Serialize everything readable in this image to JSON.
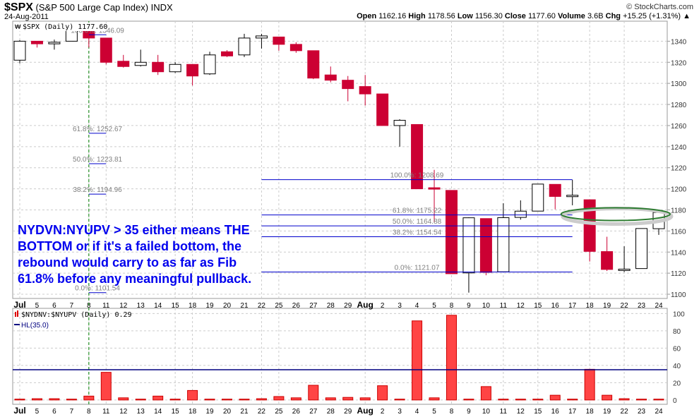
{
  "header": {
    "symbol": "$SPX",
    "name": "(S&P 500 Large Cap Index)",
    "exchange": "INDX",
    "date": "24-Aug-2011",
    "brand": "© StockCharts.com",
    "open_label": "Open",
    "open": "1162.16",
    "high_label": "High",
    "high": "1178.56",
    "low_label": "Low",
    "low": "1156.30",
    "close_label": "Close",
    "close": "1177.60",
    "volume_label": "Volume",
    "volume": "3.6B",
    "chg_label": "Chg",
    "chg": "+15.25 (+1.31%)",
    "chg_icon": "triangle-up-icon"
  },
  "annotation": [
    "NYDVN:NYUPV > 35 either means THE",
    "BOTTOM or if it's a failed bottom, the",
    "rebound would carry to as far as Fib",
    "61.8% before any meaningful pullback."
  ],
  "colors": {
    "up": "#ffffff",
    "down": "#cc0033",
    "bar": "#ff4444",
    "hline": "#000080",
    "fib": "#0000cc",
    "fibtext": "#808080",
    "vline": "#008000",
    "ellipse": "#2e7d32",
    "annotation": "#0000ee"
  },
  "chart_data": [
    {
      "type": "candlestick",
      "legend": "$SPX (Daily) 1177.60",
      "ylim": [
        1096,
        1359
      ],
      "yticks": [
        1100,
        1120,
        1140,
        1160,
        1180,
        1200,
        1220,
        1240,
        1260,
        1280,
        1300,
        1320,
        1340
      ],
      "grid": true,
      "x_labels": [
        "Jul",
        "5",
        "6",
        "7",
        "8",
        "11",
        "12",
        "13",
        "14",
        "15",
        "18",
        "19",
        "20",
        "21",
        "22",
        "25",
        "26",
        "27",
        "28",
        "29",
        "Aug",
        "2",
        "3",
        "4",
        "5",
        "8",
        "9",
        "10",
        "11",
        "12",
        "15",
        "16",
        "17",
        "18",
        "19",
        "22",
        "23",
        "24"
      ],
      "ohlc": [
        [
          1322,
          1341,
          1319,
          1340
        ],
        [
          1340,
          1340,
          1334,
          1337.5
        ],
        [
          1337.5,
          1341.5,
          1332,
          1339
        ],
        [
          1340,
          1356,
          1340,
          1353
        ],
        [
          1351,
          1356,
          1334,
          1343
        ],
        [
          1343,
          1343,
          1318,
          1320
        ],
        [
          1321,
          1327,
          1315,
          1316
        ],
        [
          1317,
          1332,
          1316,
          1320
        ],
        [
          1320,
          1327,
          1308,
          1311
        ],
        [
          1311,
          1320,
          1310,
          1318
        ],
        [
          1318,
          1318,
          1298,
          1307
        ],
        [
          1309,
          1330,
          1308,
          1327
        ],
        [
          1330,
          1331.5,
          1325,
          1326
        ],
        [
          1327,
          1347,
          1325,
          1343
        ],
        [
          1343,
          1347,
          1333,
          1345
        ],
        [
          1344,
          1344,
          1331,
          1337
        ],
        [
          1337,
          1339,
          1329,
          1331
        ],
        [
          1331,
          1331,
          1304,
          1305
        ],
        [
          1308,
          1316,
          1301,
          1303
        ],
        [
          1303,
          1307,
          1283,
          1295
        ],
        [
          1297,
          1308,
          1279,
          1290
        ],
        [
          1290,
          1290,
          1260,
          1260
        ],
        [
          1260,
          1266,
          1240,
          1265
        ],
        [
          1261,
          1261,
          1200,
          1200
        ],
        [
          1201,
          1218,
          1168,
          1200
        ],
        [
          1198.48,
          1198.48,
          1119.28,
          1119.46
        ],
        [
          1120.23,
          1172.88,
          1101.54,
          1172.53
        ],
        [
          1171.77,
          1171.77,
          1118.01,
          1120.76
        ],
        [
          1121.3,
          1186.29,
          1121.3,
          1172.64
        ],
        [
          1172.87,
          1189.04,
          1170.74,
          1178.81
        ],
        [
          1178.86,
          1204.49,
          1178.86,
          1204.49
        ],
        [
          1204.22,
          1204.22,
          1180.53,
          1192.76
        ],
        [
          1192.89,
          1208.47,
          1184.36,
          1193.89
        ],
        [
          1189.62,
          1189.62,
          1131.03,
          1140.65
        ],
        [
          1140.47,
          1154.54,
          1122.05,
          1123.53
        ],
        [
          1123.55,
          1145.49,
          1121.09,
          1123.82
        ],
        [
          1124.36,
          1162.35,
          1124.36,
          1162.35
        ],
        [
          1162.16,
          1178.56,
          1156.3,
          1177.6
        ]
      ],
      "fib_sets": [
        {
          "from": "8",
          "to": "11",
          "levels": [
            {
              "label": "100.0%: 1346.09",
              "value": 1346.09
            },
            {
              "label": "61.8%: 1252.67",
              "value": 1252.67
            },
            {
              "label": "50.0%: 1223.81",
              "value": 1223.81
            },
            {
              "label": "38.2%: 1194.96",
              "value": 1194.96
            },
            {
              "label": "0.0%: 1101.54",
              "value": 1101.54
            }
          ]
        },
        {
          "from": "17",
          "to": "22",
          "levels": [
            {
              "label": "100.0%: 1208.69",
              "value": 1208.69
            },
            {
              "label": "61.8%: 1175.22",
              "value": 1175.22
            },
            {
              "label": "50.0%: 1164.88",
              "value": 1164.88
            },
            {
              "label": "38.2%: 1154.54",
              "value": 1154.54
            },
            {
              "label": "0.0%: 1121.07",
              "value": 1121.07
            }
          ]
        }
      ],
      "marker_date": "8",
      "highlight": {
        "date_from": "17",
        "date_to": "24",
        "value": 1176
      }
    },
    {
      "type": "bar",
      "legend": "$NYDNV:$NYUPV (Daily) 0.29",
      "hline_label": "HL(35.0)",
      "hline": 35,
      "ylim": [
        -5,
        106
      ],
      "yticks": [
        0,
        20,
        40,
        60,
        80,
        100
      ],
      "grid": true,
      "values": [
        1,
        1.5,
        1.5,
        1,
        4.5,
        32,
        2.5,
        1,
        4.5,
        1,
        11,
        1,
        1,
        1,
        1.5,
        4,
        2.5,
        17,
        2.5,
        3,
        2.5,
        16.5,
        1,
        91.5,
        2.5,
        98,
        1,
        15.5,
        0.3,
        1,
        1,
        5.5,
        1,
        35.5,
        5.5,
        1.5,
        1,
        0.29
      ]
    }
  ]
}
